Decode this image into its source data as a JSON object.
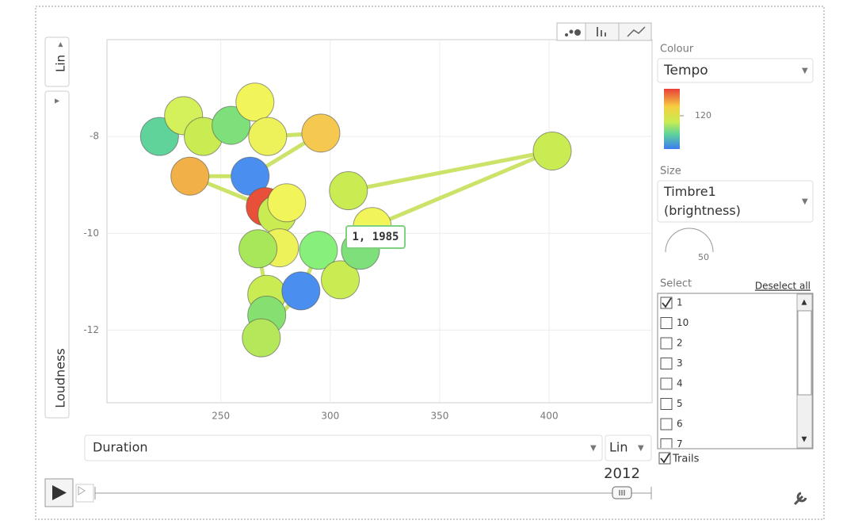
{
  "chart_data": {
    "type": "scatter",
    "x_label": "Duration",
    "y_label": "Loudness",
    "x": [
      222,
      233,
      242,
      254.7,
      265.6,
      271.4,
      295.7,
      263.4,
      235.9,
      270.3,
      275.7,
      280.1,
      276.8,
      267.0,
      271.0,
      271.0,
      268.5,
      286.6,
      294.6,
      304.6,
      313.8,
      319.2,
      401.4,
      308.3
    ],
    "values": [
      -8.0,
      -7.57,
      -8.0,
      -7.77,
      -7.29,
      -8.0,
      -7.93,
      -8.82,
      -8.82,
      -9.45,
      -9.61,
      -9.37,
      -10.3,
      -10.32,
      -11.26,
      -11.69,
      -12.16,
      -11.19,
      -10.35,
      -10.96,
      -10.35,
      -9.86,
      -8.3,
      -9.12
    ],
    "point_colors": [
      "#5fd39a",
      "#d4f05a",
      "#c8ec52",
      "#7ee07a",
      "#f2f55a",
      "#eef25a",
      "#f5c850",
      "#4a8ff0",
      "#f2b048",
      "#e8503a",
      "#c8ec52",
      "#f2f55a",
      "#eef25a",
      "#a8e65a",
      "#c8ec52",
      "#86e070",
      "#b4e85a",
      "#4a8ff0",
      "#86f07a",
      "#c8ec52",
      "#7ee07a",
      "#f2f55a",
      "#c8ec52",
      "#c8ec52"
    ],
    "trail_color": "#c6e05a",
    "xlim": [
      198,
      447
    ],
    "ylim": [
      -13.5,
      -6
    ],
    "xticks": [
      250,
      300,
      350,
      400
    ],
    "yticks": [
      -8,
      -10,
      -12
    ],
    "grid": true,
    "annotation": "1, 1985",
    "year": "2012"
  },
  "controls": {
    "y_scale": "Lin",
    "x_scale": "Lin",
    "colour_label": "Colour",
    "colour_value": "Tempo",
    "colour_tick": 120,
    "size_label": "Size",
    "size_value": "Timbre1 (brightness)",
    "size_tick": 50,
    "select_label": "Select",
    "deselect": "Deselect all",
    "items": [
      "1",
      "10",
      "2",
      "3",
      "4",
      "5",
      "6",
      "7"
    ],
    "checked": [
      true,
      false,
      false,
      false,
      false,
      false,
      false,
      false
    ],
    "trails": "Trails"
  }
}
